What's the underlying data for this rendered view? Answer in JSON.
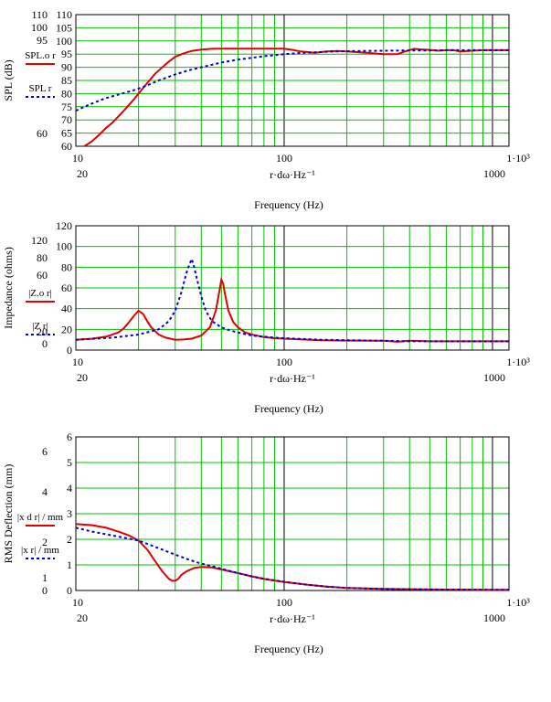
{
  "chart_data": [
    {
      "type": "line",
      "xscale": "log",
      "xlim": [
        10,
        1200
      ],
      "ylim": [
        60,
        110
      ],
      "ylabel": "SPL (dB)",
      "xlabel": "Frequency (Hz)",
      "xexpr": "r·dω·Hz⁻¹",
      "x_tick_labels": [
        "10",
        "100",
        "1·10³"
      ],
      "x_marker_labels": [
        "20",
        "1000"
      ],
      "y_tick_labels": [
        "60",
        "65",
        "70",
        "75",
        "80",
        "85",
        "90",
        "95",
        "100",
        "105",
        "110"
      ],
      "y_marker_labels": [
        "110",
        "100",
        "95",
        "60"
      ],
      "legend": [
        {
          "label": "SPL.o r",
          "color": "#e00000",
          "style": "solid"
        },
        {
          "label": "SPL r",
          "color": "#0000cc",
          "style": "dashed"
        }
      ],
      "series": [
        {
          "color": "#e00000",
          "style": "solid",
          "x": [
            11,
            12,
            13,
            14,
            15,
            16,
            17,
            18,
            19,
            20,
            22,
            24,
            26,
            28,
            30,
            33,
            36,
            40,
            45,
            50,
            60,
            70,
            80,
            90,
            100,
            110,
            120,
            140,
            160,
            180,
            200,
            250,
            300,
            350,
            380,
            420,
            450,
            500,
            550,
            600,
            650,
            700,
            800,
            900,
            1000,
            1100,
            1200
          ],
          "y": [
            60,
            62,
            64.5,
            67,
            69,
            71.3,
            73.5,
            75.7,
            77.8,
            80,
            84,
            87.5,
            90,
            92.2,
            94,
            95.3,
            96.2,
            96.7,
            97,
            97.1,
            97.1,
            97.1,
            97.1,
            97.1,
            97.1,
            96.6,
            96,
            95.5,
            96,
            96.2,
            96,
            95.5,
            95,
            95,
            96,
            97,
            96.8,
            96.6,
            96.3,
            96.5,
            96.5,
            96,
            96.3,
            96.5,
            96.5,
            96.5,
            96.5
          ]
        },
        {
          "color": "#0000cc",
          "style": "dashed",
          "x": [
            10,
            11,
            12,
            13,
            14,
            15,
            17,
            19,
            21,
            23,
            25,
            30,
            35,
            40,
            50,
            60,
            70,
            80,
            90,
            100,
            110,
            120,
            140,
            160,
            180,
            200,
            300,
            400,
            500,
            600,
            800,
            1000,
            1200
          ],
          "y": [
            73.5,
            75,
            76.3,
            77.4,
            78.3,
            79,
            80.2,
            81.3,
            82.5,
            83.8,
            85,
            87.3,
            88.9,
            90,
            91.8,
            92.9,
            93.6,
            94.2,
            94.6,
            95,
            95.2,
            95.4,
            95.7,
            95.9,
            96,
            96.1,
            96.3,
            96.4,
            96.4,
            96.5,
            96.5,
            96.5,
            96.5
          ]
        }
      ]
    },
    {
      "type": "line",
      "xscale": "log",
      "xlim": [
        10,
        1200
      ],
      "ylim": [
        0,
        120
      ],
      "ylabel": "Impedance (ohms)",
      "xlabel": "Frequency (Hz)",
      "xexpr": "r·dω·Hz⁻¹",
      "x_tick_labels": [
        "10",
        "100",
        "1·10³"
      ],
      "x_marker_labels": [
        "20",
        "1000"
      ],
      "y_tick_labels": [
        "0",
        "20",
        "40",
        "60",
        "80",
        "100",
        "120"
      ],
      "y_marker_labels": [
        "120",
        "80",
        "60",
        "20",
        "0"
      ],
      "legend": [
        {
          "label": "|Z.o r|",
          "color": "#e00000",
          "style": "solid"
        },
        {
          "label": "|Z r|",
          "color": "#0000cc",
          "style": "dashed"
        }
      ],
      "series": [
        {
          "color": "#e00000",
          "style": "solid",
          "x": [
            10,
            12,
            14,
            16,
            17,
            18,
            19,
            20,
            21,
            22,
            23,
            25,
            27,
            30,
            33,
            36,
            40,
            44,
            47,
            49,
            50,
            51,
            52,
            54,
            57,
            60,
            65,
            70,
            80,
            90,
            100,
            150,
            200,
            300,
            350,
            400,
            500,
            700,
            1000,
            1200
          ],
          "y": [
            10,
            11,
            13,
            17,
            21,
            27,
            33,
            38,
            35,
            28,
            22,
            15,
            12,
            10,
            10.2,
            11,
            14,
            22,
            38,
            58,
            68,
            64,
            54,
            38,
            27,
            22,
            17,
            15,
            12.5,
            11.5,
            11,
            9.5,
            9.2,
            9,
            8,
            9,
            8.5,
            8.5,
            8.5,
            8.5
          ]
        },
        {
          "color": "#0000cc",
          "style": "dashed",
          "x": [
            10,
            15,
            20,
            25,
            28,
            30,
            32,
            34,
            35,
            36,
            37,
            38,
            40,
            42,
            45,
            50,
            55,
            60,
            70,
            80,
            90,
            100,
            150,
            200,
            300,
            400,
            500,
            700,
            1000,
            1200
          ],
          "y": [
            10,
            12,
            15,
            20,
            28,
            38,
            55,
            75,
            82,
            88,
            80,
            70,
            52,
            38,
            28,
            22,
            19,
            17,
            14,
            13,
            12,
            11.5,
            10,
            9.5,
            9,
            8.5,
            8.5,
            8.5,
            8.5,
            8.5
          ]
        }
      ]
    },
    {
      "type": "line",
      "xscale": "log",
      "xlim": [
        10,
        1200
      ],
      "ylim": [
        0,
        6
      ],
      "ylabel": "RMS Deflection (mm)",
      "xlabel": "Frequency (Hz)",
      "xexpr": "r·dω·Hz⁻¹",
      "x_tick_labels": [
        "10",
        "100",
        "1·10³"
      ],
      "x_marker_labels": [
        "20",
        "1000"
      ],
      "y_tick_labels": [
        "0",
        "1",
        "2",
        "3",
        "4",
        "5",
        "6"
      ],
      "y_marker_labels": [
        "6",
        "4",
        "2",
        "1",
        "0"
      ],
      "legend": [
        {
          "label": "|x d r| / mm",
          "color": "#e00000",
          "style": "solid"
        },
        {
          "label": "|x r| / mm",
          "color": "#0000cc",
          "style": "dashed"
        }
      ],
      "series": [
        {
          "color": "#e00000",
          "style": "solid",
          "x": [
            10,
            12,
            14,
            16,
            18,
            20,
            22,
            24,
            26,
            28,
            29,
            30,
            31,
            32,
            34,
            37,
            40,
            45,
            50,
            60,
            70,
            80,
            100,
            130,
            160,
            200,
            300,
            500,
            1000,
            1200
          ],
          "y": [
            2.6,
            2.55,
            2.45,
            2.3,
            2.15,
            1.95,
            1.6,
            1.15,
            0.75,
            0.45,
            0.38,
            0.38,
            0.45,
            0.6,
            0.75,
            0.88,
            0.92,
            0.9,
            0.82,
            0.68,
            0.55,
            0.45,
            0.33,
            0.22,
            0.15,
            0.1,
            0.06,
            0.04,
            0.03,
            0.03
          ]
        },
        {
          "color": "#0000cc",
          "style": "dashed",
          "x": [
            10,
            12,
            15,
            20,
            25,
            30,
            35,
            40,
            45,
            50,
            60,
            70,
            80,
            100,
            130,
            160,
            200,
            300,
            500,
            1000,
            1200
          ],
          "y": [
            2.45,
            2.3,
            2.15,
            1.95,
            1.65,
            1.4,
            1.2,
            1.05,
            0.95,
            0.85,
            0.68,
            0.55,
            0.46,
            0.34,
            0.22,
            0.15,
            0.1,
            0.06,
            0.04,
            0.03,
            0.03
          ]
        }
      ]
    }
  ]
}
